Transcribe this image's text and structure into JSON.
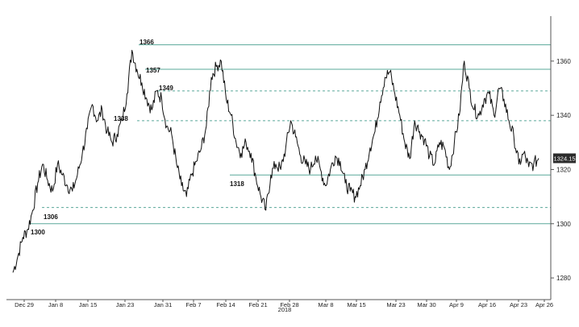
{
  "chart_data": {
    "type": "line",
    "title": "",
    "xlabel": "",
    "ylabel": "",
    "ylim": [
      1272,
      1376
    ],
    "y_ticks": [
      1280,
      1300,
      1320,
      1340,
      1360
    ],
    "x_ticks": [
      "Dec 29",
      "Jan 8",
      "Jan 15",
      "Jan 23",
      "Jan 31",
      "Feb 7",
      "Feb 14",
      "Feb 21",
      "Feb 28",
      "Mar 8",
      "Mar 15",
      "Mar 23",
      "Mar 30",
      "Apr 9",
      "Apr 16",
      "Apr 23",
      "Apr 26"
    ],
    "x_year_label": "2018",
    "last_value": 1324.15,
    "last_value_label": "1324.15",
    "level_labels": [
      "1366",
      "1357",
      "1349",
      "1338",
      "1318",
      "1306",
      "1300"
    ],
    "levels": [
      {
        "value": 1366,
        "style": "solid"
      },
      {
        "value": 1357,
        "style": "solid"
      },
      {
        "value": 1349,
        "style": "dashed"
      },
      {
        "value": 1338,
        "style": "dashed"
      },
      {
        "value": 1318,
        "style": "solid"
      },
      {
        "value": 1306,
        "style": "dashed"
      },
      {
        "value": 1300,
        "style": "solid"
      }
    ],
    "series": [
      {
        "values": [
          1282,
          1288,
          1295,
          1298,
          1305,
          1315,
          1322,
          1316,
          1312,
          1322,
          1318,
          1314,
          1312,
          1318,
          1326,
          1335,
          1344,
          1338,
          1342,
          1334,
          1330,
          1333,
          1338,
          1348,
          1364,
          1357,
          1352,
          1346,
          1342,
          1349,
          1346,
          1336,
          1333,
          1322,
          1314,
          1310,
          1318,
          1323,
          1328,
          1336,
          1354,
          1358,
          1360,
          1346,
          1340,
          1330,
          1326,
          1330,
          1326,
          1317,
          1310,
          1305,
          1318,
          1322,
          1320,
          1328,
          1338,
          1332,
          1325,
          1322,
          1320,
          1325,
          1320,
          1314,
          1320,
          1325,
          1323,
          1315,
          1312,
          1310,
          1314,
          1320,
          1328,
          1334,
          1345,
          1354,
          1356,
          1348,
          1340,
          1330,
          1324,
          1338,
          1334,
          1331,
          1325,
          1322,
          1330,
          1328,
          1320,
          1330,
          1340,
          1360,
          1350,
          1342,
          1340,
          1346,
          1348,
          1340,
          1350,
          1346,
          1338,
          1332,
          1322,
          1326,
          1321,
          1322,
          1324.15
        ]
      }
    ]
  }
}
